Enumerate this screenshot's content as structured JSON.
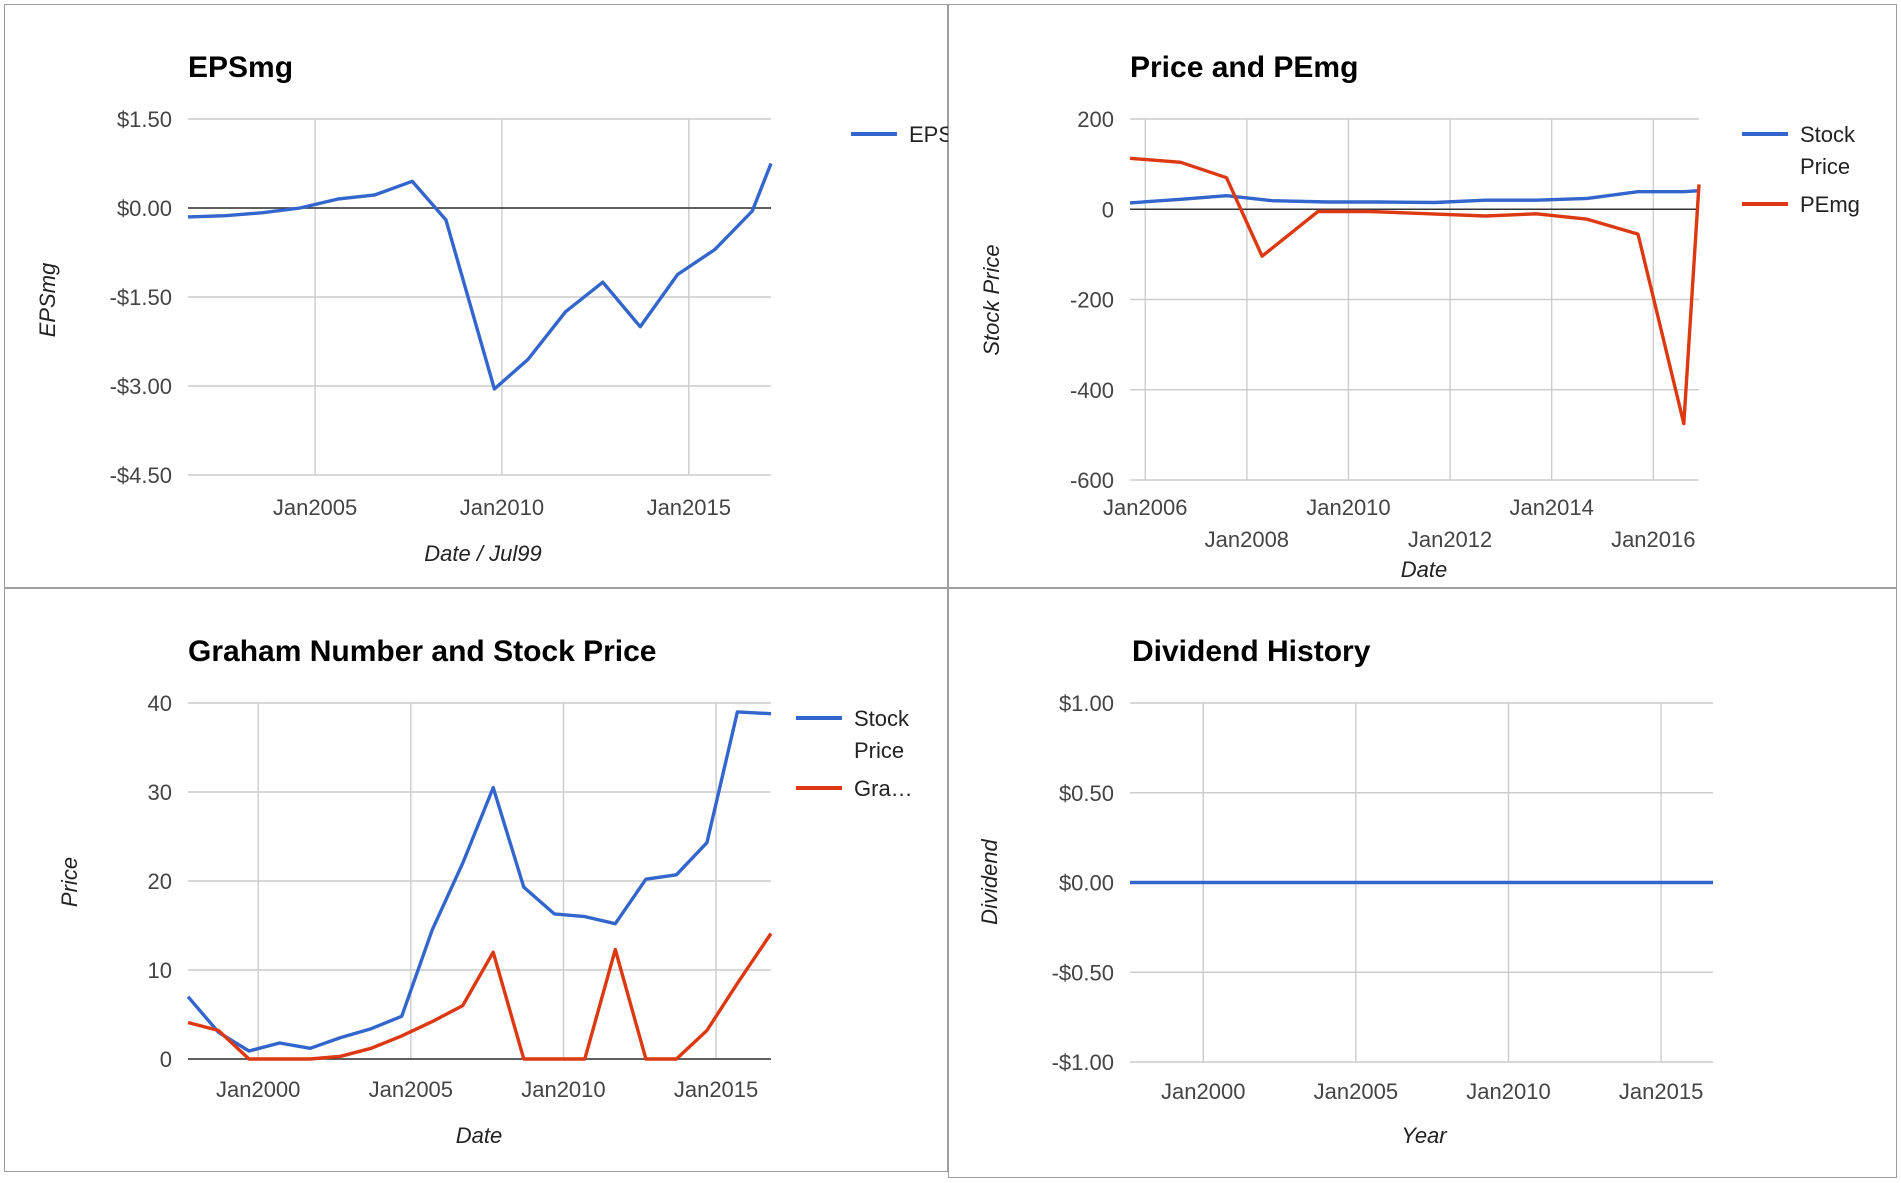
{
  "colors": {
    "blue": "#3366cc",
    "red": "#dc3912",
    "grid": "#cccccc"
  },
  "chart_data": [
    {
      "type": "line",
      "title": "EPSmg",
      "xlabel": "Date / Jul99",
      "ylabel": "EPSmg",
      "x_ticks": [
        {
          "label": "Jan2005",
          "x": 2005.0
        },
        {
          "label": "Jan2010",
          "x": 2010.0
        },
        {
          "label": "Jan2015",
          "x": 2015.0
        }
      ],
      "y_ticks": [
        {
          "label": "$1.50",
          "y": 1.5
        },
        {
          "label": "$0.00",
          "y": 0
        },
        {
          "label": "-$1.50",
          "y": -1.5
        },
        {
          "label": "-$3.00",
          "y": -3.0
        },
        {
          "label": "-$4.50",
          "y": -4.5
        }
      ],
      "xlim": [
        2001.6,
        2017.2
      ],
      "ylim": [
        -4.5,
        1.5
      ],
      "legend_position": "right",
      "series": [
        {
          "name": "EPS…",
          "color": "#3366cc",
          "points": [
            [
              2001.6,
              -0.15
            ],
            [
              2002.6,
              -0.13
            ],
            [
              2003.6,
              -0.08
            ],
            [
              2004.6,
              0.0
            ],
            [
              2005.6,
              0.15
            ],
            [
              2006.6,
              0.22
            ],
            [
              2007.6,
              0.45
            ],
            [
              2008.5,
              -0.2
            ],
            [
              2009.8,
              -3.05
            ],
            [
              2010.7,
              -2.55
            ],
            [
              2011.7,
              -1.75
            ],
            [
              2012.7,
              -1.25
            ],
            [
              2013.7,
              -2.0
            ],
            [
              2014.7,
              -1.12
            ],
            [
              2015.7,
              -0.7
            ],
            [
              2016.7,
              -0.05
            ],
            [
              2017.2,
              0.75
            ]
          ]
        }
      ]
    },
    {
      "type": "line",
      "title": "Price and PEmg",
      "xlabel": "Date",
      "ylabel": "Stock Price",
      "x_ticks": [
        {
          "label": "Jan2006",
          "x": 2006.0,
          "row": 1
        },
        {
          "label": "Jan2008",
          "x": 2008.0,
          "row": 2
        },
        {
          "label": "Jan2010",
          "x": 2010.0,
          "row": 1
        },
        {
          "label": "Jan2012",
          "x": 2012.0,
          "row": 2
        },
        {
          "label": "Jan2014",
          "x": 2014.0,
          "row": 1
        },
        {
          "label": "Jan2016",
          "x": 2016.0,
          "row": 2
        }
      ],
      "y_ticks": [
        {
          "label": "200",
          "y": 200
        },
        {
          "label": "0",
          "y": 0
        },
        {
          "label": "-200",
          "y": -200
        },
        {
          "label": "-400",
          "y": -400
        },
        {
          "label": "-600",
          "y": -600
        }
      ],
      "xlim": [
        2005.7,
        2016.9
      ],
      "ylim": [
        -600,
        200
      ],
      "legend_position": "right",
      "series": [
        {
          "name": "Stock Price",
          "legend_lines": [
            "Stock",
            "Price"
          ],
          "color": "#3366cc",
          "points": [
            [
              2005.7,
              14
            ],
            [
              2006.7,
              22
            ],
            [
              2007.6,
              30
            ],
            [
              2008.5,
              19
            ],
            [
              2009.6,
              16
            ],
            [
              2010.6,
              16
            ],
            [
              2011.7,
              15
            ],
            [
              2012.7,
              20
            ],
            [
              2013.7,
              20
            ],
            [
              2014.7,
              24
            ],
            [
              2015.7,
              39
            ],
            [
              2016.6,
              39
            ],
            [
              2016.9,
              41
            ]
          ]
        },
        {
          "name": "PEmg",
          "legend_lines": [
            "PEmg"
          ],
          "color": "#dc3912",
          "points": [
            [
              2005.7,
              113
            ],
            [
              2006.7,
              104
            ],
            [
              2007.6,
              70
            ],
            [
              2008.3,
              -104
            ],
            [
              2009.4,
              -5
            ],
            [
              2010.4,
              -5
            ],
            [
              2011.6,
              -10
            ],
            [
              2012.7,
              -15
            ],
            [
              2013.7,
              -10
            ],
            [
              2014.7,
              -22
            ],
            [
              2015.7,
              -55
            ],
            [
              2016.6,
              -475
            ],
            [
              2016.9,
              55
            ]
          ]
        }
      ]
    },
    {
      "type": "line",
      "title": "Graham Number and Stock Price",
      "xlabel": "Date",
      "ylabel": "Price",
      "x_ticks": [
        {
          "label": "Jan2000",
          "x": 2000.0
        },
        {
          "label": "Jan2005",
          "x": 2005.0
        },
        {
          "label": "Jan2010",
          "x": 2010.0
        },
        {
          "label": "Jan2015",
          "x": 2015.0
        }
      ],
      "y_ticks": [
        {
          "label": "40",
          "y": 40
        },
        {
          "label": "30",
          "y": 30
        },
        {
          "label": "20",
          "y": 20
        },
        {
          "label": "10",
          "y": 10
        },
        {
          "label": "0",
          "y": 0
        }
      ],
      "xlim": [
        1997.7,
        2016.8
      ],
      "ylim": [
        0,
        40
      ],
      "legend_position": "right",
      "series": [
        {
          "name": "Stock Price",
          "legend_lines": [
            "Stock",
            "Price"
          ],
          "color": "#3366cc",
          "points": [
            [
              1997.7,
              7.0
            ],
            [
              1998.7,
              3.0
            ],
            [
              1999.7,
              0.9
            ],
            [
              2000.7,
              1.8
            ],
            [
              2001.7,
              1.2
            ],
            [
              2002.7,
              2.4
            ],
            [
              2003.7,
              3.4
            ],
            [
              2004.7,
              4.8
            ],
            [
              2005.7,
              14.5
            ],
            [
              2006.7,
              22.0
            ],
            [
              2007.7,
              30.5
            ],
            [
              2008.7,
              19.3
            ],
            [
              2009.7,
              16.3
            ],
            [
              2010.7,
              16.0
            ],
            [
              2011.7,
              15.2
            ],
            [
              2012.7,
              20.2
            ],
            [
              2013.7,
              20.7
            ],
            [
              2014.7,
              24.3
            ],
            [
              2015.7,
              39.0
            ],
            [
              2016.8,
              38.8
            ]
          ]
        },
        {
          "name": "Gra…",
          "legend_lines": [
            "Gra…"
          ],
          "color": "#dc3912",
          "points": [
            [
              1997.7,
              4.1
            ],
            [
              1998.7,
              3.2
            ],
            [
              1999.7,
              0
            ],
            [
              2000.7,
              0
            ],
            [
              2001.7,
              0
            ],
            [
              2002.7,
              0.3
            ],
            [
              2003.7,
              1.2
            ],
            [
              2004.7,
              2.6
            ],
            [
              2005.7,
              4.2
            ],
            [
              2006.7,
              6.0
            ],
            [
              2007.7,
              12.0
            ],
            [
              2008.7,
              0
            ],
            [
              2009.7,
              0
            ],
            [
              2010.7,
              0
            ],
            [
              2011.7,
              12.3
            ],
            [
              2012.7,
              0
            ],
            [
              2013.7,
              0
            ],
            [
              2014.7,
              3.2
            ],
            [
              2015.7,
              8.5
            ],
            [
              2016.8,
              14.1
            ]
          ]
        }
      ]
    },
    {
      "type": "line",
      "title": "Dividend History",
      "xlabel": "Year",
      "ylabel": "Dividend",
      "x_ticks": [
        {
          "label": "Jan2000",
          "x": 2000.0
        },
        {
          "label": "Jan2005",
          "x": 2005.0
        },
        {
          "label": "Jan2010",
          "x": 2010.0
        },
        {
          "label": "Jan2015",
          "x": 2015.0
        }
      ],
      "y_ticks": [
        {
          "label": "$1.00",
          "y": 1.0
        },
        {
          "label": "$0.50",
          "y": 0.5
        },
        {
          "label": "$0.00",
          "y": 0
        },
        {
          "label": "-$0.50",
          "y": -0.5
        },
        {
          "label": "-$1.00",
          "y": -1.0
        }
      ],
      "xlim": [
        1997.6,
        2016.7
      ],
      "ylim": [
        -1.0,
        1.0
      ],
      "legend_position": "none",
      "series": [
        {
          "name": "",
          "color": "#3366cc",
          "points": [
            [
              1997.6,
              0
            ],
            [
              2016.7,
              0
            ]
          ]
        }
      ]
    }
  ]
}
